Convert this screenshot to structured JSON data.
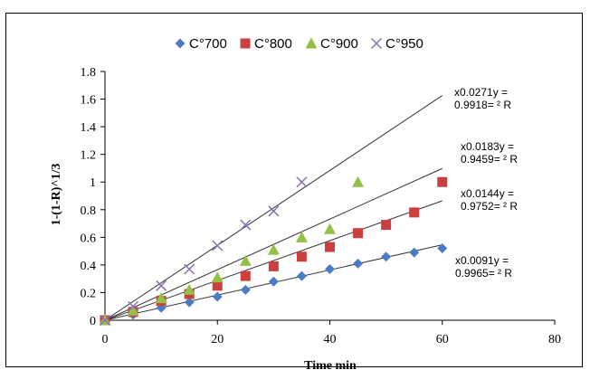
{
  "chart_data": {
    "type": "scatter",
    "xlabel": "Time min",
    "ylabel": "1-(1-R)^1/3",
    "xlim": [
      0,
      80
    ],
    "ylim": [
      0,
      1.8
    ],
    "x_ticks": [
      "0",
      "20",
      "40",
      "60",
      "80"
    ],
    "y_ticks": [
      "0",
      "0.2",
      "0.4",
      "0.6",
      "0.8",
      "1",
      "1.2",
      "1.4",
      "1.6",
      "1.8"
    ],
    "legend_position": "top",
    "series": [
      {
        "name": "C°700",
        "marker": "diamond",
        "color": "#4a7cc4",
        "x": [
          0,
          5,
          10,
          15,
          20,
          25,
          30,
          35,
          40,
          45,
          50,
          55,
          60
        ],
        "y": [
          0,
          0.04,
          0.09,
          0.13,
          0.17,
          0.22,
          0.28,
          0.32,
          0.37,
          0.41,
          0.46,
          0.49,
          0.52
        ],
        "fit_slope": 0.0091,
        "annotation": [
          "x0.0091y =",
          "0.9965= ² R"
        ]
      },
      {
        "name": "C°800",
        "marker": "square",
        "color": "#cc3f3f",
        "x": [
          0,
          5,
          10,
          15,
          20,
          25,
          30,
          35,
          40,
          45,
          50,
          55,
          60
        ],
        "y": [
          0,
          0.06,
          0.14,
          0.19,
          0.25,
          0.32,
          0.39,
          0.46,
          0.53,
          0.63,
          0.69,
          0.78,
          1.0
        ],
        "fit_slope": 0.0144,
        "annotation": [
          "x0.0144y =",
          "0.9752= ² R"
        ]
      },
      {
        "name": "C°900",
        "marker": "triangle",
        "color": "#93c047",
        "x": [
          0,
          5,
          10,
          15,
          20,
          25,
          30,
          35,
          40,
          45
        ],
        "y": [
          0,
          0.07,
          0.16,
          0.22,
          0.31,
          0.43,
          0.51,
          0.6,
          0.66,
          1.0
        ],
        "fit_slope": 0.0183,
        "annotation": [
          "x0.0183y =",
          "0.9459= ² R"
        ]
      },
      {
        "name": "C°950",
        "marker": "x",
        "color": "#8a6fb5",
        "x": [
          0,
          5,
          10,
          15,
          20,
          25,
          30,
          35
        ],
        "y": [
          0,
          0.1,
          0.25,
          0.37,
          0.54,
          0.69,
          0.79,
          1.0
        ],
        "fit_slope": 0.0271,
        "annotation": [
          "x0.0271y =",
          "0.9918= ² R"
        ]
      }
    ]
  }
}
